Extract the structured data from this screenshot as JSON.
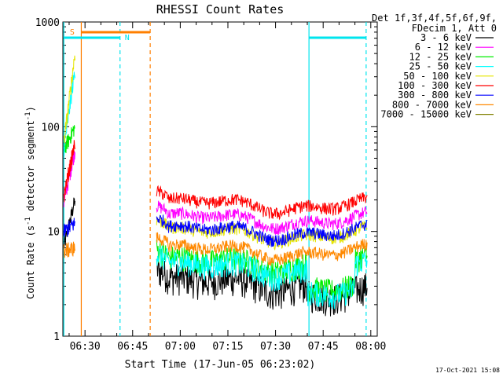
{
  "chart_data": {
    "type": "line",
    "title": "RHESSI Count Rates",
    "xlabel": "Start Time (17-Jun-05 06:23:02)",
    "ylabel_parts": [
      "Count Rate (s",
      "-1",
      " detector segment",
      "-1",
      ")"
    ],
    "yscale": "log",
    "ylim": [
      1,
      1000
    ],
    "xlim_minutes": [
      0,
      99
    ],
    "ytick_labels": [
      "1",
      "10",
      "100",
      "1000"
    ],
    "ytick_values": [
      1,
      10,
      100,
      1000
    ],
    "xtick_labels": [
      "06:30",
      "06:45",
      "07:00",
      "07:15",
      "07:30",
      "07:45",
      "08:00"
    ],
    "xtick_minutes": [
      6.97,
      21.97,
      36.97,
      51.97,
      66.97,
      81.97,
      96.97
    ],
    "legend_header": [
      "Det 1f,3f,4f,5f,6f,9f,",
      "FDecim 1, Att 0"
    ],
    "series": [
      {
        "name": "3 - 6 keV",
        "color": "#000000",
        "start": [
          7.1,
          20
        ],
        "level": 3.2
      },
      {
        "name": "6 - 12 keV",
        "color": "#ff00ff",
        "start": [
          19,
          60
        ],
        "level": 13
      },
      {
        "name": "12 - 25 keV",
        "color": "#00ee00",
        "start": [
          60,
          100
        ],
        "level": 5
      },
      {
        "name": "25 - 50 keV",
        "color": "#00ffff",
        "start": [
          60,
          350
        ],
        "level": 4.5
      },
      {
        "name": "50 - 100 keV",
        "color": "#e5e500",
        "start": [
          70,
          500
        ],
        "level": 9.5
      },
      {
        "name": "100 - 300 keV",
        "color": "#ff0000",
        "start": [
          22,
          70
        ],
        "level": 18
      },
      {
        "name": "300 - 800 keV",
        "color": "#0000ff",
        "start": [
          10,
          12
        ],
        "level": 10
      },
      {
        "name": "800 - 7000 keV",
        "color": "#ff8800",
        "start": [
          6.5,
          7
        ],
        "level": 6.5
      },
      {
        "name": "7000 - 15000 keV",
        "color": "#808000",
        "start": [
          null,
          null
        ],
        "level": null
      }
    ],
    "markers": {
      "south_label": "S",
      "north_label": "N",
      "south_color": "#ff7f00",
      "north_color": "#00e5ee"
    },
    "annotation_date": "17-Oct-2021 15:08"
  }
}
